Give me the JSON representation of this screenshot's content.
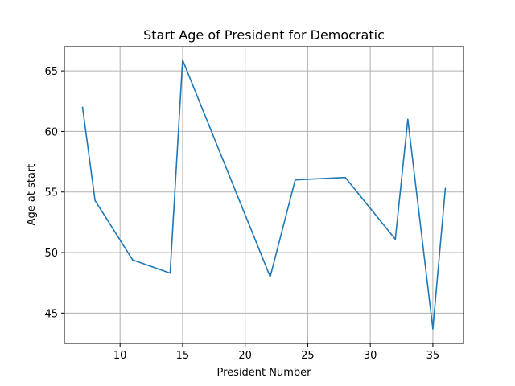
{
  "chart_data": {
    "type": "line",
    "title": "Start Age of President for Democratic",
    "xlabel": "President Number",
    "ylabel": "Age at start",
    "xlim": [
      5.55,
      37.45
    ],
    "ylim": [
      42.5,
      67
    ],
    "xticks": [
      10,
      15,
      20,
      25,
      30,
      35
    ],
    "yticks": [
      45,
      50,
      55,
      60,
      65
    ],
    "grid": true,
    "line_color": "#1f77b4",
    "series": [
      {
        "x": [
          7,
          8,
          11,
          14,
          15,
          22,
          24,
          28,
          32,
          33,
          35,
          36
        ],
        "values": [
          62.0,
          54.3,
          49.4,
          48.3,
          65.9,
          48.0,
          56.0,
          56.2,
          51.1,
          61.0,
          43.7,
          55.3
        ]
      }
    ]
  }
}
